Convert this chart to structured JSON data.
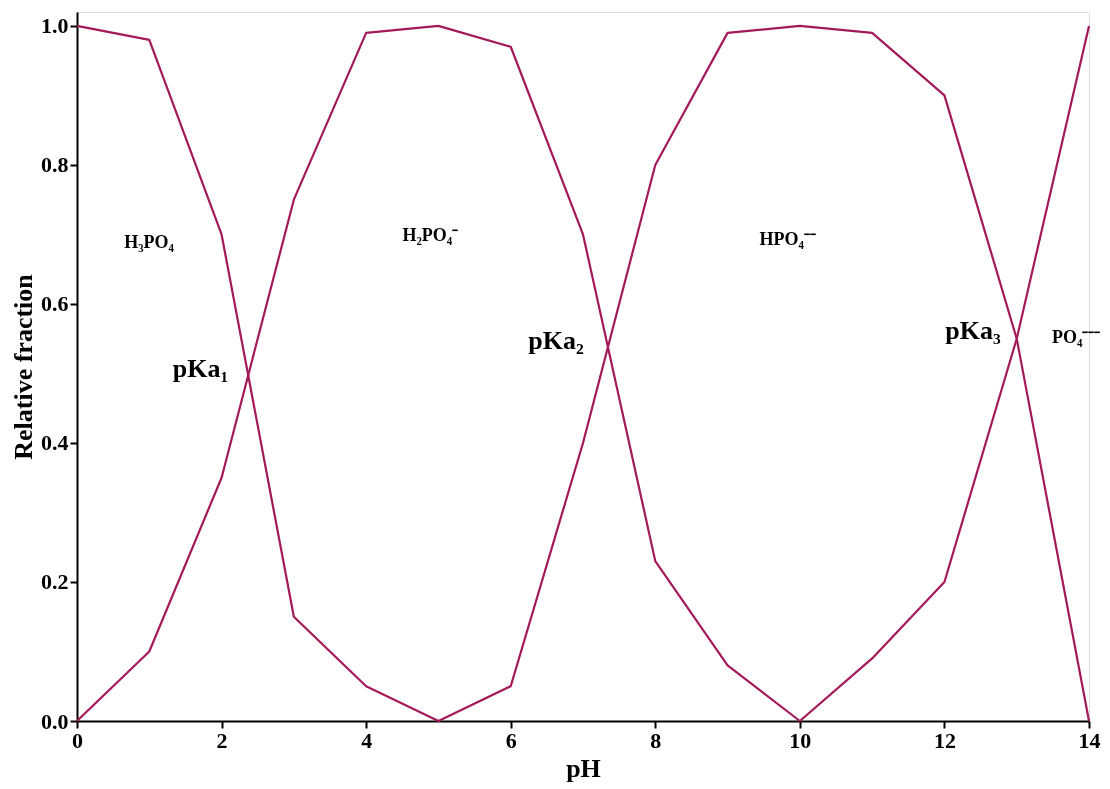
{
  "chart_data": {
    "type": "line",
    "xlabel": "pH",
    "ylabel": "Relative fraction",
    "x": [
      0,
      1,
      2,
      3,
      4,
      5,
      6,
      7,
      8,
      9,
      10,
      11,
      12,
      13,
      14
    ],
    "series": [
      {
        "color": "#a3195b",
        "values": [
          1.0,
          0.98,
          0.7,
          0.15,
          0.05,
          0.0,
          0.05,
          0.4,
          0.8,
          0.99,
          1.0,
          0.99,
          0.9,
          0.55,
          0.0
        ]
      },
      {
        "color": "#a3195b",
        "values": [
          0.0,
          0.1,
          0.35,
          0.75,
          0.99,
          1.0,
          0.97,
          0.7,
          0.23,
          0.08,
          0.0,
          0.09,
          0.2,
          0.55,
          1.0
        ]
      }
    ],
    "xlim": [
      0,
      14
    ],
    "ylim": [
      0,
      1.02
    ],
    "xticks": [
      0,
      2,
      4,
      6,
      8,
      10,
      12,
      14
    ],
    "yticks": [
      {
        "value": 0,
        "label": "0.0"
      },
      {
        "value": 0.2,
        "label": "0.2"
      },
      {
        "value": 0.4,
        "label": "0.4"
      },
      {
        "value": 0.6,
        "label": "0.6"
      },
      {
        "value": 0.8,
        "label": "0.8"
      },
      {
        "value": 1.0,
        "label": "1.0"
      }
    ],
    "annotations": [
      "H₃PO₄",
      "H₂PO₄⁻",
      "HPO₄⁻⁻",
      "PO₄⁻⁻⁻",
      "pKa₁",
      "pKa₂",
      "pKa₃"
    ],
    "grid": false,
    "legend": false,
    "marker": "none",
    "line_style": "solid"
  }
}
